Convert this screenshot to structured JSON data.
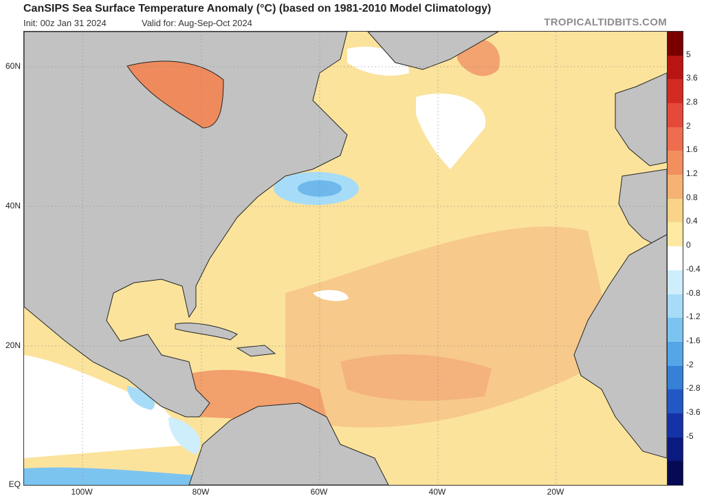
{
  "header": {
    "title": "CanSIPS Sea Surface Temperature Anomaly (°C) (based on 1981-2010 Model Climatology)",
    "init": "Init: 00z Jan 31 2024",
    "valid": "Valid for: Aug-Sep-Oct 2024",
    "site": "TROPICALTIDBITS.COM"
  },
  "axes": {
    "lat_labels": [
      "60N",
      "40N",
      "20N",
      "EQ"
    ],
    "lon_labels": [
      "100W",
      "80W",
      "60W",
      "40W",
      "20W"
    ]
  },
  "colorbar": {
    "labels": [
      "5",
      "3.6",
      "2.8",
      "2",
      "1.6",
      "1.2",
      "0.8",
      "0.4",
      "0",
      "-0.4",
      "-0.8",
      "-1.2",
      "-1.6",
      "-2",
      "-2.8",
      "-3.6",
      "-5"
    ],
    "colors": [
      "#7a0000",
      "#b81414",
      "#d32a22",
      "#e5493a",
      "#ef6d4f",
      "#f28f5f",
      "#f5b273",
      "#f9d488",
      "#fde9a2",
      "#ffffff",
      "#cfeefc",
      "#a6dcf7",
      "#7cc4f0",
      "#55a6e6",
      "#3680d8",
      "#2258c4",
      "#1533a6",
      "#0b1a80",
      "#060a55"
    ]
  },
  "map": {
    "land_color": "#c2c2c2",
    "coast_color": "#222222"
  }
}
